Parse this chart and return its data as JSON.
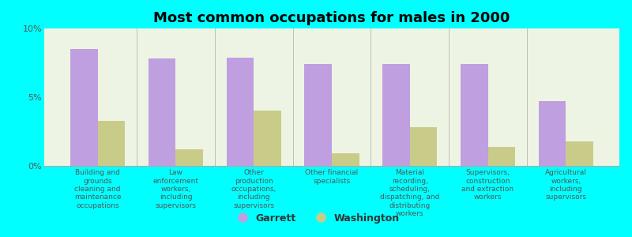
{
  "title": "Most common occupations for males in 2000",
  "background_color": "#00FFFF",
  "plot_bg_color": "#eef4e4",
  "categories": [
    "Building and\ngrounds\ncleaning and\nmaintenance\noccupations",
    "Law\nenforcement\nworkers,\nincluding\nsupervisors",
    "Other\nproduction\noccupations,\nincluding\nsupervisors",
    "Other financial\nspecialists",
    "Material\nrecording,\nscheduling,\ndispatching, and\ndistributing\nworkers",
    "Supervisors,\nconstruction\nand extraction\nworkers",
    "Agricultural\nworkers,\nincluding\nsupervisors"
  ],
  "garrett_values": [
    8.5,
    7.8,
    7.9,
    7.4,
    7.4,
    7.4,
    4.7
  ],
  "washington_values": [
    3.3,
    1.2,
    4.0,
    0.9,
    2.8,
    1.4,
    1.8
  ],
  "garrett_color": "#bf9fdf",
  "washington_color": "#c8cc88",
  "ylim": [
    0,
    10
  ],
  "yticks": [
    0,
    5,
    10
  ],
  "ytick_labels": [
    "0%",
    "5%",
    "10%"
  ],
  "legend_garrett": "Garrett",
  "legend_washington": "Washington",
  "bar_width": 0.35,
  "label_fontsize": 6.5,
  "title_fontsize": 13
}
